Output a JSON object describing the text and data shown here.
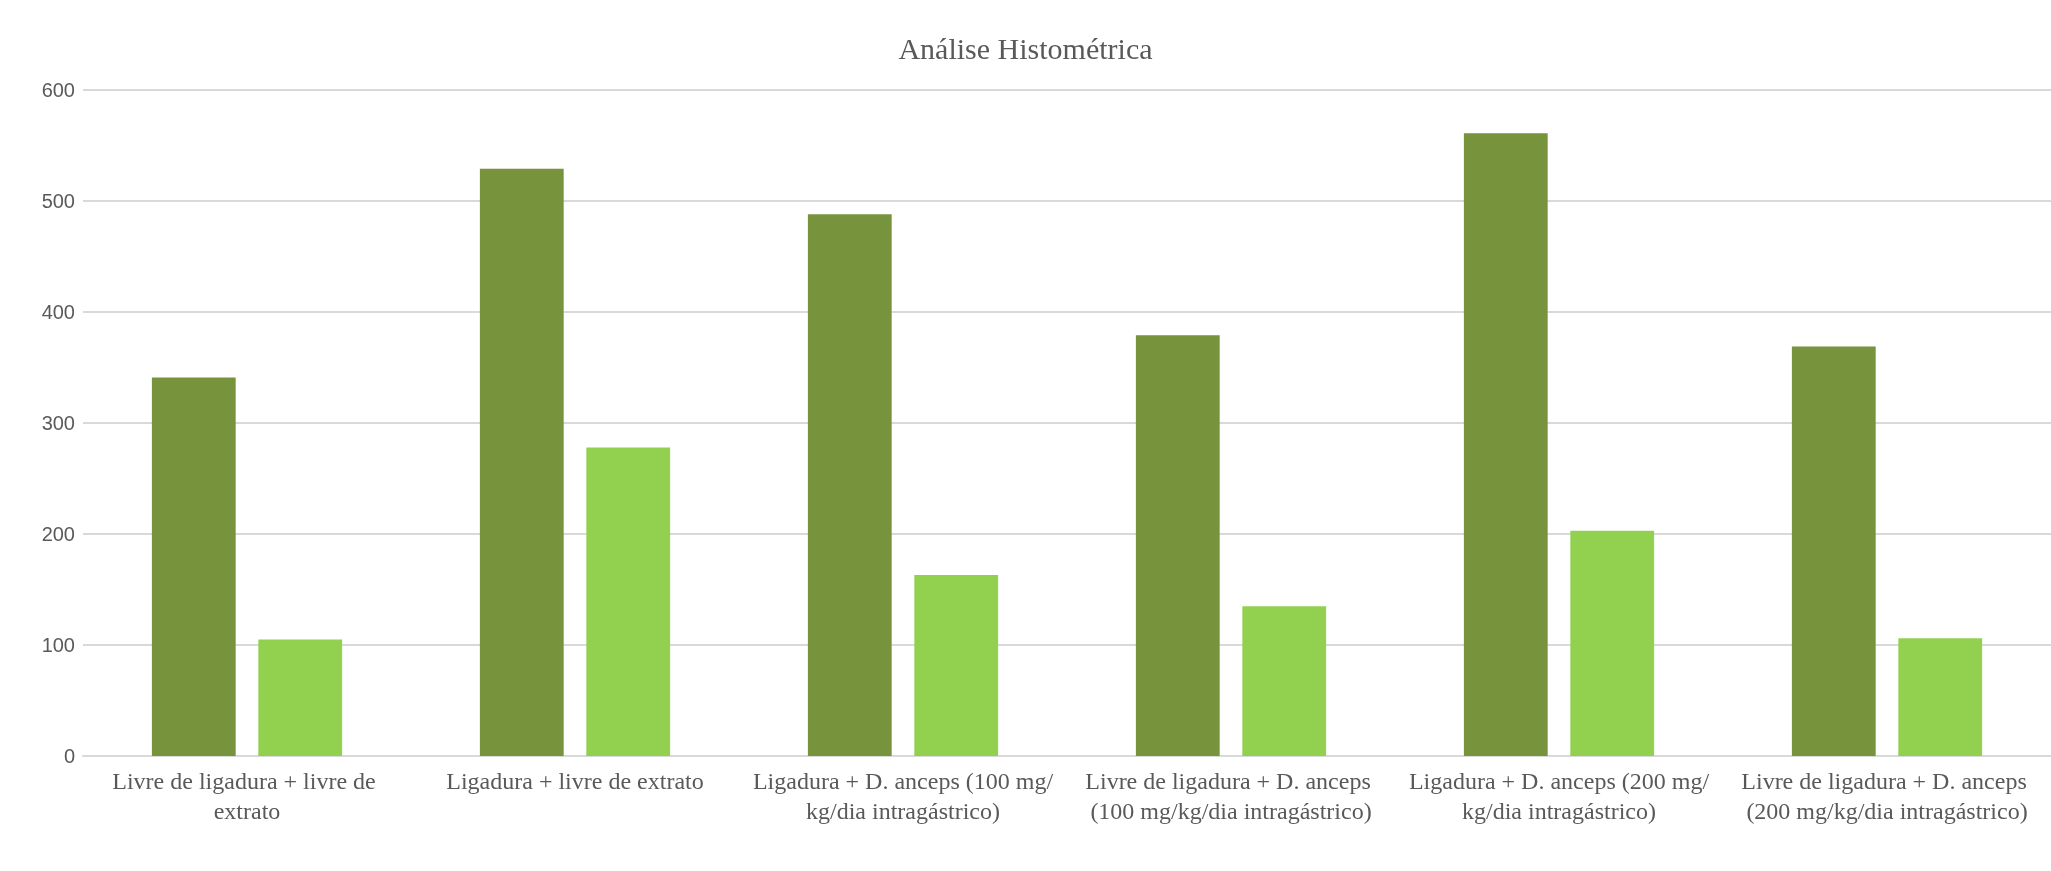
{
  "chart_data": {
    "type": "bar",
    "title": "Análise Histométrica",
    "categories": [
      "Livre de ligadura + livre de extrato",
      "Ligadura + livre de extrato",
      "Ligadura + D. anceps (100 mg/kg/dia intragástrico)",
      "Livre de ligadura + D. anceps (100 mg/kg/dia intragástrico)",
      "Ligadura + D. anceps (200 mg/kg/dia intragástrico)",
      "Livre de ligadura + D. anceps (200 mg/kg/dia intragástrico)"
    ],
    "series": [
      {
        "color": "#77933c",
        "values": [
          341,
          529,
          488,
          379,
          561,
          369
        ]
      },
      {
        "color": "#92d050",
        "values": [
          105,
          278,
          163,
          135,
          203,
          106
        ]
      }
    ],
    "ylim": [
      0,
      600
    ],
    "yticks": [
      0,
      100,
      200,
      300,
      400,
      500,
      600
    ],
    "grid": "y"
  }
}
